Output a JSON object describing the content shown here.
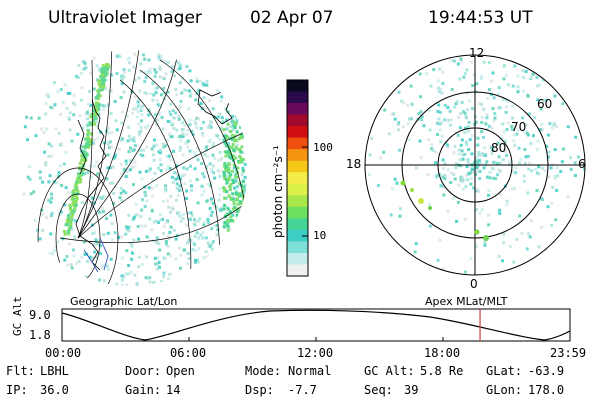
{
  "header": {
    "instrument": "Ultraviolet Imager",
    "date": "02 Apr 07",
    "time": "19:44:53 UT"
  },
  "geo_map": {
    "label": "Geographic Lat/Lon"
  },
  "colorbar": {
    "label": "photon cm⁻²s⁻¹",
    "ticks": [
      "100",
      "10"
    ],
    "colors": [
      "#0a0a1e",
      "#2a0a4a",
      "#6a0a5a",
      "#a00a2a",
      "#d01010",
      "#ee5010",
      "#f59410",
      "#f5c818",
      "#f5ec4a",
      "#dcf04a",
      "#a8e84a",
      "#6ee060",
      "#44d494",
      "#3ccdc4",
      "#7ee0d8",
      "#c4ecec",
      "#f0f0f0"
    ]
  },
  "polar_plot": {
    "label": "Apex MLat/MLT",
    "mlt_labels": {
      "top": "12",
      "left": "18",
      "right": "6",
      "bottom": "0"
    },
    "lat_labels": [
      "60",
      "70",
      "80"
    ]
  },
  "altitude_plot": {
    "y_label": "GC Alt",
    "y_ticks": [
      "9.0",
      "1.8"
    ],
    "x_ticks": [
      "00:00",
      "06:00",
      "12:00",
      "18:00",
      "23:59"
    ],
    "current_time_hours": 19.75,
    "marker_color": "#d04040"
  },
  "status": {
    "filter_label": "Flt:",
    "filter_value": "LBHL",
    "door_label": "Door:",
    "door_value": "Open",
    "mode_label": "Mode:",
    "mode_value": "Normal",
    "gc_alt_label": "GC Alt:",
    "gc_alt_value": "5.8 Re",
    "glat_label": "GLat:",
    "glat_value": "-63.9",
    "ip_label": "IP:",
    "ip_value": "36.0",
    "gain_label": "Gain:",
    "gain_value": "14",
    "dsp_label": "Dsp:",
    "dsp_value": "-7.7",
    "seq_label": "Seq:",
    "seq_value": "39",
    "glon_label": "GLon:",
    "glon_value": "178.0"
  }
}
